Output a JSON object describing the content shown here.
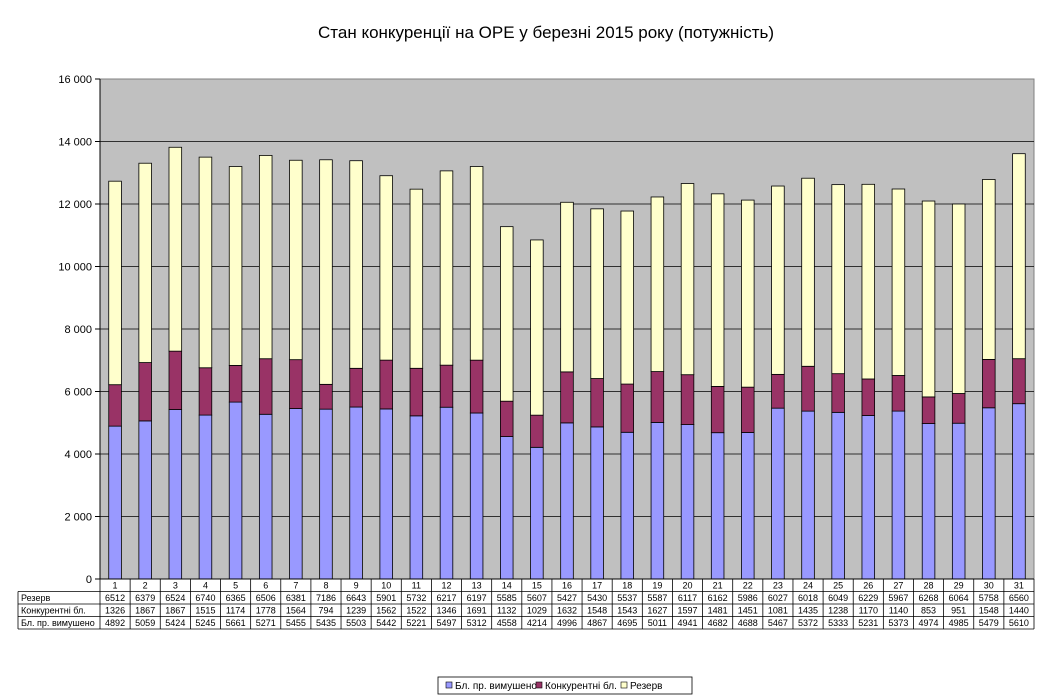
{
  "chart_data": {
    "type": "bar",
    "stacked": true,
    "title": "Стан конкуренції на ОРЕ  у березні 2015 року (потужність)",
    "xlabel": "",
    "ylabel": "",
    "ylim": [
      0,
      16000
    ],
    "yticks": [
      "0",
      "2 000",
      "4 000",
      "6 000",
      "8 000",
      "10 000",
      "12 000",
      "14 000",
      "16 000"
    ],
    "ytick_values": [
      0,
      2000,
      4000,
      6000,
      8000,
      10000,
      12000,
      14000,
      16000
    ],
    "grid": true,
    "legend_position": "bottom",
    "categories": [
      "1",
      "2",
      "3",
      "4",
      "5",
      "6",
      "7",
      "8",
      "9",
      "10",
      "11",
      "12",
      "13",
      "14",
      "15",
      "16",
      "17",
      "18",
      "19",
      "20",
      "21",
      "22",
      "23",
      "24",
      "25",
      "26",
      "27",
      "28",
      "29",
      "30",
      "31"
    ],
    "series": [
      {
        "name": "Бл. пр. вимушено",
        "color": "#9999ff",
        "values": [
          4892,
          5059,
          5424,
          5245,
          5661,
          5271,
          5455,
          5435,
          5503,
          5442,
          5221,
          5497,
          5312,
          4558,
          4214,
          4996,
          4867,
          4695,
          5011,
          4941,
          4682,
          4688,
          5467,
          5372,
          5333,
          5231,
          5373,
          4974,
          4985,
          5479,
          5610
        ]
      },
      {
        "name": "Конкурентні бл.",
        "color": "#993366",
        "values": [
          1326,
          1867,
          1867,
          1515,
          1174,
          1778,
          1564,
          794,
          1239,
          1562,
          1522,
          1346,
          1691,
          1132,
          1029,
          1632,
          1548,
          1543,
          1627,
          1597,
          1481,
          1451,
          1081,
          1435,
          1238,
          1170,
          1140,
          853,
          951,
          1548,
          1440
        ]
      },
      {
        "name": "Резерв",
        "color": "#ffffcc",
        "values": [
          6512,
          6379,
          6524,
          6740,
          6365,
          6506,
          6381,
          7186,
          6643,
          5901,
          5732,
          6217,
          6197,
          5585,
          5607,
          5427,
          5430,
          5537,
          5587,
          6117,
          6162,
          5986,
          6027,
          6018,
          6049,
          6229,
          5967,
          6268,
          6064,
          5758,
          6560
        ]
      }
    ],
    "data_table_row_order": [
      "Резерв",
      "Конкурентні бл.",
      "Бл. пр. вимушено"
    ]
  }
}
